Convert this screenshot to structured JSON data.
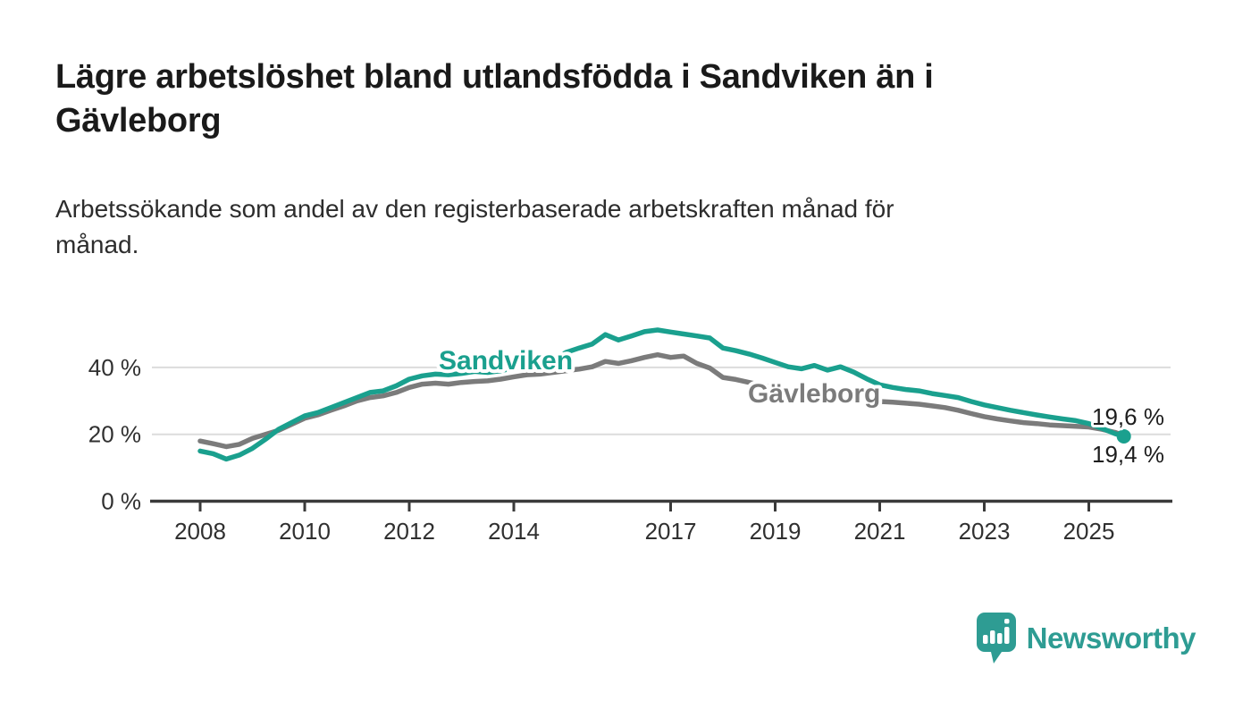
{
  "header": {
    "title_lines": [
      "Lägre arbetslöshet bland utlandsfödda i Sandviken än i",
      "Gävleborg"
    ],
    "subtitle_lines": [
      "Arbetssökande som andel av den registerbaserade arbetskraften månad för",
      "månad."
    ]
  },
  "chart_data": {
    "type": "line",
    "title": "Lägre arbetslöshet bland utlandsfödda i Sandviken än i Gävleborg",
    "subtitle": "Arbetssökande som andel av den registerbaserade arbetskraften månad för månad.",
    "unit": "%",
    "xlabel": "",
    "ylabel": "",
    "grid": "horizontal-only",
    "legend_position": "inline-labels",
    "xlim": [
      2007.9,
      2026.6
    ],
    "ylim": [
      0,
      59
    ],
    "x_ticks": [
      2008,
      2010,
      2012,
      2014,
      2017,
      2019,
      2021,
      2023,
      2025
    ],
    "y_ticks": [
      0,
      20,
      40
    ],
    "y_tick_labels": [
      "0 %",
      "20 %",
      "40 %"
    ],
    "series": [
      {
        "name": "Sandviken",
        "color": "#1AA08E",
        "end_value": 19.4,
        "end_label": "19,4 %",
        "end_dot": true,
        "points": [
          [
            2008,
            15
          ],
          [
            2008.25,
            14.2
          ],
          [
            2008.5,
            12.6
          ],
          [
            2008.75,
            13.8
          ],
          [
            2009,
            15.8
          ],
          [
            2009.25,
            18.5
          ],
          [
            2009.5,
            21.5
          ],
          [
            2009.75,
            23.5
          ],
          [
            2010,
            25.5
          ],
          [
            2010.25,
            26.5
          ],
          [
            2010.5,
            28
          ],
          [
            2010.75,
            29.5
          ],
          [
            2011,
            31
          ],
          [
            2011.25,
            32.5
          ],
          [
            2011.5,
            33
          ],
          [
            2011.75,
            34.5
          ],
          [
            2012,
            36.5
          ],
          [
            2012.25,
            37.5
          ],
          [
            2012.5,
            38
          ],
          [
            2012.75,
            37.8
          ],
          [
            2013,
            38.2
          ],
          [
            2013.25,
            38.8
          ],
          [
            2013.5,
            38.5
          ],
          [
            2013.75,
            39
          ],
          [
            2014,
            39.8
          ],
          [
            2014.25,
            40.5
          ],
          [
            2014.5,
            41
          ],
          [
            2014.75,
            42.2
          ],
          [
            2015,
            44.5
          ],
          [
            2015.25,
            45.8
          ],
          [
            2015.5,
            47
          ],
          [
            2015.75,
            49.8
          ],
          [
            2016,
            48.2
          ],
          [
            2016.25,
            49.4
          ],
          [
            2016.5,
            50.7
          ],
          [
            2016.75,
            51.2
          ],
          [
            2017,
            50.6
          ],
          [
            2017.25,
            50
          ],
          [
            2017.5,
            49.4
          ],
          [
            2017.75,
            48.8
          ],
          [
            2018,
            45.8
          ],
          [
            2018.25,
            45
          ],
          [
            2018.5,
            44
          ],
          [
            2018.75,
            42.8
          ],
          [
            2019,
            41.5
          ],
          [
            2019.25,
            40.2
          ],
          [
            2019.5,
            39.6
          ],
          [
            2019.75,
            40.6
          ],
          [
            2020,
            39.2
          ],
          [
            2020.25,
            40.2
          ],
          [
            2020.5,
            38.6
          ],
          [
            2020.75,
            36.6
          ],
          [
            2021,
            34.8
          ],
          [
            2021.25,
            34
          ],
          [
            2021.5,
            33.4
          ],
          [
            2021.75,
            33
          ],
          [
            2022,
            32.2
          ],
          [
            2022.25,
            31.6
          ],
          [
            2022.5,
            31
          ],
          [
            2022.75,
            29.8
          ],
          [
            2023,
            28.8
          ],
          [
            2023.25,
            28
          ],
          [
            2023.5,
            27.2
          ],
          [
            2023.75,
            26.5
          ],
          [
            2024,
            25.8
          ],
          [
            2024.25,
            25.2
          ],
          [
            2024.5,
            24.6
          ],
          [
            2024.75,
            24.1
          ],
          [
            2025,
            23.2
          ],
          [
            2025.25,
            21.8
          ],
          [
            2025.5,
            20.2
          ],
          [
            2025.67,
            19.4
          ]
        ]
      },
      {
        "name": "Gävleborg",
        "color": "#7B7B7B",
        "end_value": 19.6,
        "end_label": "19,6 %",
        "end_dot": false,
        "points": [
          [
            2008,
            18
          ],
          [
            2008.25,
            17.2
          ],
          [
            2008.5,
            16.3
          ],
          [
            2008.75,
            17
          ],
          [
            2009,
            18.8
          ],
          [
            2009.25,
            20
          ],
          [
            2009.5,
            21.2
          ],
          [
            2009.75,
            23
          ],
          [
            2010,
            24.8
          ],
          [
            2010.25,
            25.8
          ],
          [
            2010.5,
            27.2
          ],
          [
            2010.75,
            28.5
          ],
          [
            2011,
            30
          ],
          [
            2011.25,
            31
          ],
          [
            2011.5,
            31.5
          ],
          [
            2011.75,
            32.5
          ],
          [
            2012,
            34
          ],
          [
            2012.25,
            35
          ],
          [
            2012.5,
            35.3
          ],
          [
            2012.75,
            35
          ],
          [
            2013,
            35.5
          ],
          [
            2013.25,
            35.8
          ],
          [
            2013.5,
            36
          ],
          [
            2013.75,
            36.5
          ],
          [
            2014,
            37.2
          ],
          [
            2014.25,
            37.8
          ],
          [
            2014.5,
            38
          ],
          [
            2014.75,
            38.5
          ],
          [
            2015,
            39
          ],
          [
            2015.25,
            39.5
          ],
          [
            2015.5,
            40.2
          ],
          [
            2015.75,
            41.8
          ],
          [
            2016,
            41.2
          ],
          [
            2016.25,
            42
          ],
          [
            2016.5,
            43
          ],
          [
            2016.75,
            43.8
          ],
          [
            2017,
            43
          ],
          [
            2017.25,
            43.4
          ],
          [
            2017.5,
            41.2
          ],
          [
            2017.75,
            39.8
          ],
          [
            2018,
            37
          ],
          [
            2018.25,
            36.4
          ],
          [
            2018.5,
            35.5
          ],
          [
            2018.75,
            34.7
          ],
          [
            2019,
            34
          ],
          [
            2019.25,
            33.2
          ],
          [
            2019.5,
            32.8
          ],
          [
            2019.75,
            33.4
          ],
          [
            2020,
            32.4
          ],
          [
            2020.25,
            33.2
          ],
          [
            2020.5,
            32
          ],
          [
            2020.75,
            31.2
          ],
          [
            2021,
            29.8
          ],
          [
            2021.25,
            29.6
          ],
          [
            2021.5,
            29.3
          ],
          [
            2021.75,
            29
          ],
          [
            2022,
            28.5
          ],
          [
            2022.25,
            28
          ],
          [
            2022.5,
            27.2
          ],
          [
            2022.75,
            26.2
          ],
          [
            2023,
            25.3
          ],
          [
            2023.25,
            24.6
          ],
          [
            2023.5,
            24
          ],
          [
            2023.75,
            23.5
          ],
          [
            2024,
            23.2
          ],
          [
            2024.25,
            22.8
          ],
          [
            2024.5,
            22.6
          ],
          [
            2024.75,
            22.4
          ],
          [
            2025,
            22.2
          ],
          [
            2025.25,
            21.5
          ],
          [
            2025.5,
            20.6
          ],
          [
            2025.67,
            19.6
          ]
        ]
      }
    ]
  },
  "colors": {
    "accent_teal": "#1AA08E",
    "series_gray": "#7B7B7B",
    "gridline": "#DCDCDC",
    "axis": "#3A3A3A",
    "text_dark": "#1A1A1A",
    "logo_teal": "#2E9C93"
  },
  "branding": {
    "logo_text": "Newsworthy"
  }
}
